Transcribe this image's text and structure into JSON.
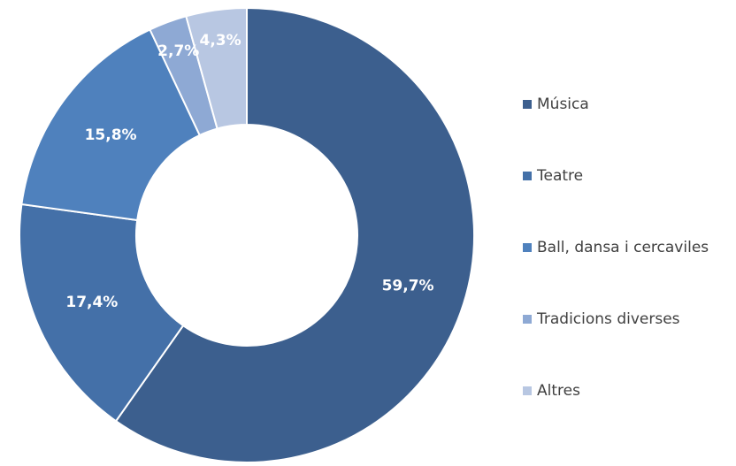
{
  "chart_data": {
    "type": "donut",
    "categories": [
      "Música",
      "Teatre",
      "Ball, dansa i cercaviles",
      "Tradicions diverses",
      "Altres"
    ],
    "values": [
      59.7,
      17.4,
      15.8,
      2.7,
      4.3
    ],
    "value_labels": [
      "59,7%",
      "17,4%",
      "15,8%",
      "2,7%",
      "4,3%"
    ],
    "colors": [
      "#3c5f8e",
      "#4470a8",
      "#4f81bd",
      "#8ea9d4",
      "#b8c7e2"
    ],
    "legend": "right"
  }
}
